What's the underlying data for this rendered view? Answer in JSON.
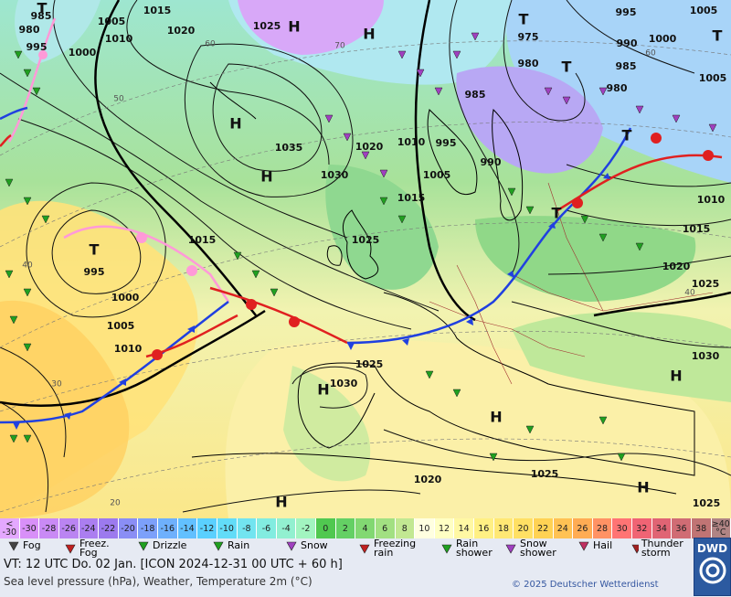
{
  "map": {
    "pressure_labels": [
      "985",
      "1005",
      "1015",
      "1010",
      "1000",
      "995",
      "980",
      "1020",
      "1025",
      "1035",
      "1030",
      "1020",
      "1010",
      "995",
      "985",
      "975",
      "980",
      "990",
      "995",
      "1000",
      "1005",
      "985",
      "980",
      "1005",
      "990",
      "1005",
      "1015",
      "1025",
      "1015",
      "995",
      "1000",
      "1005",
      "1010",
      "1025",
      "1030",
      "1020",
      "1010",
      "1015",
      "1025",
      "1030",
      "1020",
      "1025",
      "1025"
    ],
    "centers": [
      "H",
      "H",
      "H",
      "H",
      "H",
      "H",
      "H",
      "H",
      "H",
      "T",
      "T",
      "T",
      "T",
      "T",
      "T",
      "T"
    ],
    "grid_labels": [
      "60",
      "50",
      "40",
      "30",
      "20",
      "70",
      "60",
      "40"
    ]
  },
  "color_scale": {
    "labels": [
      "< -30",
      -30,
      -28,
      -26,
      -24,
      -22,
      -20,
      -18,
      -16,
      -14,
      -12,
      -10,
      -8,
      -6,
      -4,
      -2,
      0,
      2,
      4,
      6,
      8,
      10,
      12,
      14,
      16,
      18,
      20,
      22,
      24,
      26,
      28,
      30,
      32,
      34,
      36,
      38,
      "≥40 °C"
    ],
    "colors": [
      "#e4a8ff",
      "#d890f8",
      "#c98af5",
      "#ba84f2",
      "#ab7ef0",
      "#9c7aee",
      "#8a8ef5",
      "#7ca0fa",
      "#6eb0fc",
      "#62c0ff",
      "#5ad0ff",
      "#62dcf8",
      "#72e4f0",
      "#82ece0",
      "#92f0d0",
      "#a2f4c0",
      "#50c850",
      "#64d064",
      "#82d872",
      "#a2e082",
      "#c2e892",
      "#ffffe0",
      "#ffffc4",
      "#fff8a4",
      "#fff084",
      "#ffe874",
      "#ffe064",
      "#ffd254",
      "#ffc254",
      "#ffac54",
      "#ff9264",
      "#ff7474",
      "#f06474",
      "#e06474",
      "#d06c74",
      "#c07474",
      "#b08484"
    ]
  },
  "legend": [
    {
      "label": "Fog"
    },
    {
      "label": "Freez. Fog"
    },
    {
      "label": "Drizzle"
    },
    {
      "label": "Rain"
    },
    {
      "label": "Snow"
    },
    {
      "label": "Freezing rain"
    },
    {
      "label": "Rain shower"
    },
    {
      "label": "Snow shower"
    },
    {
      "label": "Hail"
    },
    {
      "label": "Thunder storm"
    }
  ],
  "footer": {
    "valid_time": "VT: 12 UTC Do.  02 Jan. [ICON 2024-12-31  00 UTC + 60 h]",
    "subtitle": "Sea level pressure (hPa), Weather, Temperature 2m (°C)",
    "copyright": "© 2025 Deutscher Wetterdienst",
    "logo": "DWD"
  }
}
